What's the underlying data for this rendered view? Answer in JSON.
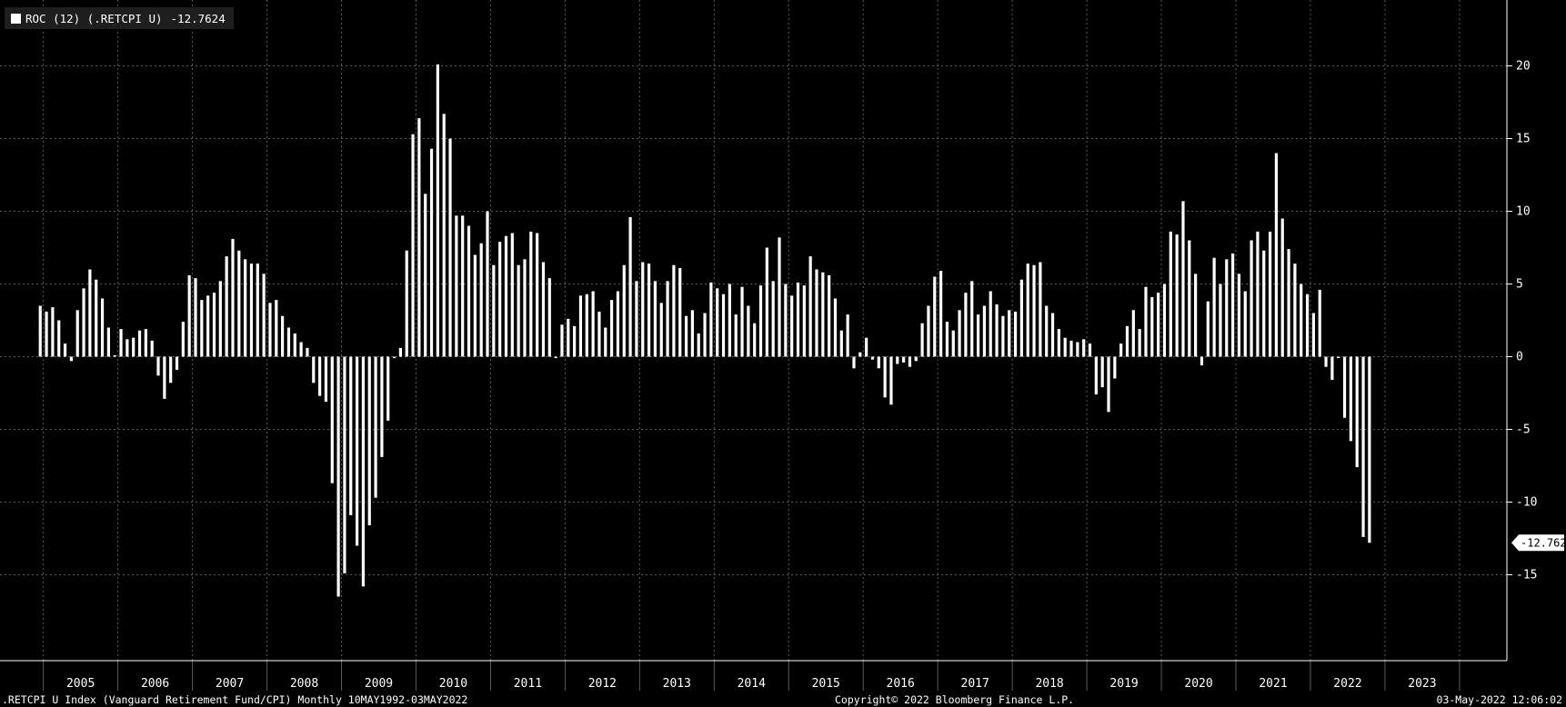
{
  "legend": {
    "label": "ROC (12) (.RETCPI U)",
    "value": "-12.7624",
    "swatch_color": "#ffffff"
  },
  "last_value_tag": "-12.7624",
  "footer": {
    "left": ".RETCPI U Index (Vanguard Retirement Fund/CPI)  Monthly 10MAY1992-03MAY2022",
    "center": "Copyright© 2022 Bloomberg Finance L.P.",
    "right": "03-May-2022 12:06:02"
  },
  "colors": {
    "background": "#000000",
    "bars": "#ffffff",
    "grid": "#5a5a5a",
    "text": "#ffffff"
  },
  "chart_data": {
    "type": "bar",
    "title": "",
    "xlabel": "",
    "ylabel": "",
    "ylim": [
      -19,
      24
    ],
    "yticks": [
      20,
      15,
      10,
      5,
      0,
      -5,
      -10,
      -15
    ],
    "year_labels": [
      "2005",
      "2006",
      "2007",
      "2008",
      "2009",
      "2010",
      "2011",
      "2012",
      "2013",
      "2014",
      "2015",
      "2016",
      "2017",
      "2018",
      "2019",
      "2020",
      "2021",
      "2022",
      "2023"
    ],
    "x_start": "2004-11",
    "x_end": "2023-12",
    "grid": true,
    "legend_position": "top-left",
    "series": [
      {
        "name": "ROC (12) (.RETCPI U)",
        "start": "2004-12",
        "frequency": "monthly",
        "values": [
          3.5,
          3.1,
          3.4,
          2.5,
          0.9,
          -0.3,
          3.2,
          4.7,
          6.0,
          5.3,
          4.0,
          2.0,
          0.1,
          1.9,
          1.2,
          1.3,
          1.8,
          1.9,
          1.1,
          -1.3,
          -2.9,
          -1.8,
          -0.9,
          2.4,
          5.6,
          5.4,
          3.9,
          4.2,
          4.4,
          5.2,
          6.9,
          8.1,
          7.3,
          6.7,
          6.4,
          6.4,
          5.7,
          3.7,
          3.9,
          2.8,
          2.0,
          1.6,
          1.0,
          0.6,
          -1.8,
          -2.7,
          -3.1,
          -8.7,
          -16.5,
          -14.9,
          -10.9,
          -13.0,
          -15.8,
          -11.6,
          -9.7,
          -6.9,
          -4.4,
          -0.1,
          0.6,
          7.3,
          15.3,
          16.4,
          11.2,
          14.3,
          20.1,
          16.7,
          15.0,
          9.7,
          9.7,
          9.0,
          7.0,
          7.8,
          10.0,
          6.3,
          7.9,
          8.3,
          8.5,
          6.3,
          6.7,
          8.6,
          8.5,
          6.5,
          5.4,
          -0.1,
          2.2,
          2.6,
          2.1,
          4.2,
          4.3,
          4.5,
          3.1,
          2.0,
          3.9,
          4.5,
          6.3,
          9.6,
          5.2,
          6.5,
          6.4,
          5.2,
          3.7,
          5.2,
          6.3,
          6.1,
          2.8,
          3.2,
          1.6,
          3.0,
          5.1,
          4.7,
          4.3,
          5.0,
          2.9,
          4.8,
          3.5,
          2.3,
          4.9,
          7.5,
          5.2,
          8.2,
          5.0,
          4.2,
          5.1,
          4.9,
          6.9,
          6.0,
          5.8,
          5.6,
          4.0,
          1.8,
          2.9,
          -0.8,
          0.3,
          1.3,
          -0.2,
          -0.8,
          -2.8,
          -3.3,
          -0.5,
          -0.4,
          -0.7,
          -0.3,
          2.3,
          3.5,
          5.5,
          5.9,
          2.4,
          1.8,
          3.2,
          4.4,
          5.2,
          2.9,
          3.5,
          4.5,
          3.6,
          2.8,
          3.2,
          3.1,
          5.3,
          6.4,
          6.3,
          6.5,
          3.5,
          3.0,
          1.9,
          1.3,
          1.1,
          1.0,
          1.2,
          0.9,
          -2.6,
          -2.1,
          -3.8,
          -1.5,
          0.9,
          2.1,
          3.2,
          1.9,
          4.8,
          4.1,
          4.4,
          5.0,
          8.6,
          8.4,
          10.7,
          8.0,
          5.7,
          -0.6,
          3.8,
          6.8,
          5.0,
          6.7,
          7.1,
          5.7,
          4.5,
          8.0,
          8.6,
          7.3,
          8.6,
          14.0,
          9.5,
          7.4,
          6.4,
          5.0,
          4.3,
          3.0,
          4.6,
          -0.7,
          -1.6,
          -0.1,
          -4.2,
          -5.8,
          -7.6,
          -12.4,
          -12.8
        ]
      }
    ]
  }
}
